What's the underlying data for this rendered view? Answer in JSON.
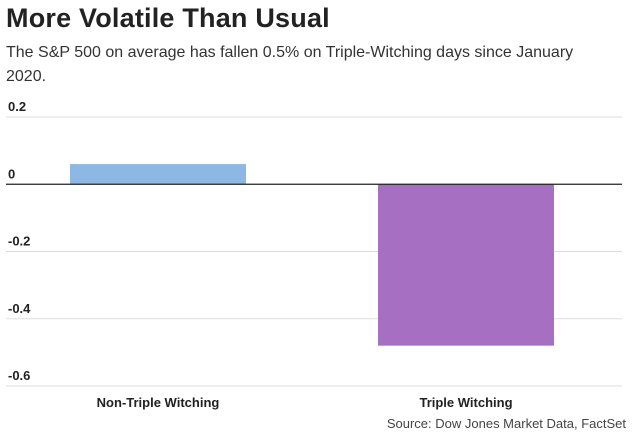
{
  "header": {
    "title": "More Volatile Than Usual",
    "subtitle": "The S&P 500 on average has fallen 0.5% on Triple-Witching days since January 2020."
  },
  "footer": {
    "source": "Source: Dow Jones Market Data, FactSet"
  },
  "colors": {
    "non_triple": "#8db8e4",
    "triple": "#a66fc2",
    "gridline": "#dddddd",
    "zero_line": "#222222"
  },
  "chart_data": {
    "type": "bar",
    "categories": [
      "Non-Triple Witching",
      "Triple Witching"
    ],
    "values": [
      0.06,
      -0.48
    ],
    "ylim": [
      -0.6,
      0.2
    ],
    "yticks": [
      0.2,
      0,
      -0.2,
      -0.4,
      -0.6
    ],
    "ytick_labels": [
      "0.2",
      "0",
      "-0.2",
      "-0.4",
      "-0.6"
    ],
    "title": "More Volatile Than Usual",
    "xlabel": "",
    "ylabel": "",
    "grid": true
  }
}
